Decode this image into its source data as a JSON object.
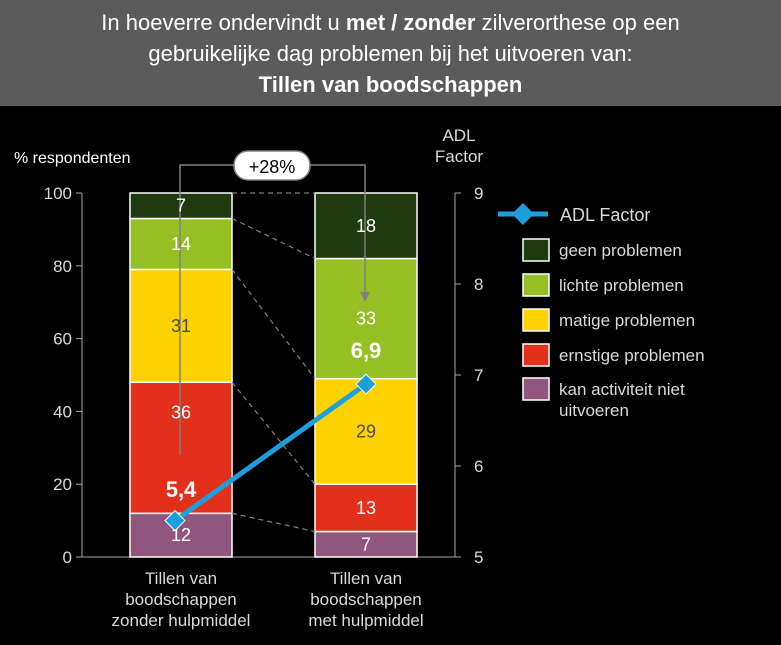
{
  "title": {
    "line1_pre": "In hoeverre ondervindt u ",
    "line1_bold": "met / zonder",
    "line1_post": " zilverorthese op een",
    "line2": "gebruikelijke dag problemen bij het uitvoeren van:",
    "line3": "Tillen van boodschappen"
  },
  "chart_data": {
    "type": "bar",
    "stacked": true,
    "title": "Tillen van boodschappen",
    "ylabel": "% respondenten",
    "ylim": [
      0,
      100
    ],
    "y_ticks": [
      0,
      20,
      40,
      60,
      80,
      100
    ],
    "y2label_lines": [
      "ADL",
      "Factor"
    ],
    "y2lim": [
      5,
      9
    ],
    "y2_ticks": [
      5,
      6,
      7,
      8,
      9
    ],
    "categories": [
      [
        "Tillen van",
        "boodschappen",
        "zonder hulpmiddel"
      ],
      [
        "Tillen van",
        "boodschappen",
        "met hulpmiddel"
      ]
    ],
    "series": [
      {
        "name": "kan activiteit niet uitvoeren",
        "legend_lines": [
          "kan activiteit niet",
          "uitvoeren"
        ],
        "color": "#91567e",
        "values": [
          12,
          7
        ]
      },
      {
        "name": "ernstige problemen",
        "legend_lines": [
          "ernstige problemen"
        ],
        "color": "#e2301a",
        "values": [
          36,
          13
        ]
      },
      {
        "name": "matige problemen",
        "legend_lines": [
          "matige problemen"
        ],
        "color": "#fed100",
        "values": [
          31,
          29
        ]
      },
      {
        "name": "lichte problemen",
        "legend_lines": [
          "lichte problemen"
        ],
        "color": "#96bf24",
        "values": [
          14,
          33
        ]
      },
      {
        "name": "geen problemen",
        "legend_lines": [
          "geen problemen"
        ],
        "color": "#1e3a0e",
        "values": [
          7,
          18
        ]
      }
    ],
    "line": {
      "name": "ADL Factor",
      "color": "#1ca0dd",
      "values": [
        5.4,
        6.9
      ],
      "labels": [
        "5,4",
        "6,9"
      ]
    },
    "annotation": "+28%",
    "legend_position": "right"
  }
}
